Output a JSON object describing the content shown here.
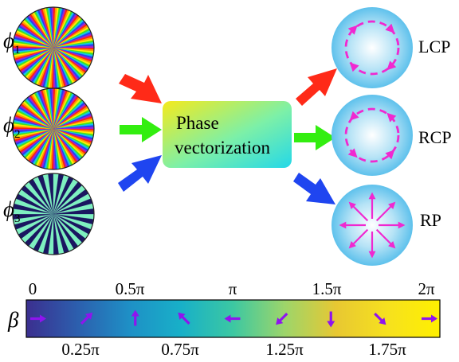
{
  "inputs": [
    {
      "symbol": "ϕ",
      "subscript": "1",
      "pattern": "rainbow-spoke",
      "color": "rainbow"
    },
    {
      "symbol": "ϕ",
      "subscript": "2",
      "pattern": "rainbow-spoke",
      "color": "rainbow"
    },
    {
      "symbol": "ϕ",
      "subscript": "3",
      "pattern": "binary-spoke",
      "colors": [
        "#7ef0c0",
        "#1a1660"
      ]
    }
  ],
  "center": {
    "line1": "Phase",
    "line2": "vectorization",
    "gradient": [
      "#f5ea1c",
      "#7cf0a8",
      "#24d8e8"
    ]
  },
  "outputs": [
    {
      "label": "LCP",
      "kind": "circular",
      "arrow_color": "#ff2a18"
    },
    {
      "label": "RCP",
      "kind": "circular",
      "arrow_color": "#33ee10"
    },
    {
      "label": "RP",
      "kind": "radial",
      "arrow_color": "#1f45f0"
    }
  ],
  "colorbar": {
    "symbol": "β",
    "top_labels": [
      "0",
      "0.5π",
      "π",
      "1.5π",
      "2π"
    ],
    "bottom_labels": [
      "0.25π",
      "0.75π",
      "1.25π",
      "1.75π"
    ],
    "arrow_angles_deg": [
      0,
      45,
      90,
      135,
      180,
      225,
      270,
      315,
      0
    ],
    "colormap": [
      "#3b2f8f",
      "#2c5fae",
      "#1e90c6",
      "#18b0c8",
      "#3cc8a2",
      "#9dd56a",
      "#e8c832",
      "#f6e11e",
      "#fff000"
    ],
    "arrow_color": "#8f14ee"
  },
  "colors": {
    "beam_outer": "#5ec1ec",
    "beam_inner": "#ffffff",
    "pol_arrow": "#f028d0"
  }
}
